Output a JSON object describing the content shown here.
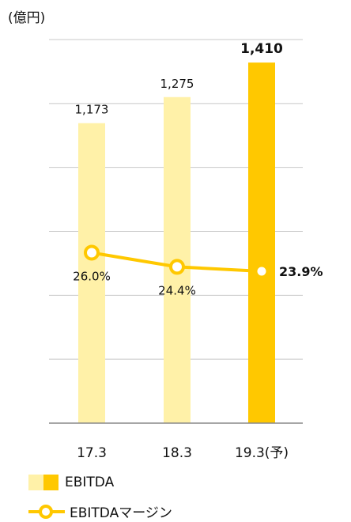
{
  "unit_label": "(億円)",
  "legend": {
    "bar_label": "EBITDA",
    "line_label": "EBITDAマージン"
  },
  "colors": {
    "bar_light": "#fff1a8",
    "bar_accent": "#ffc800",
    "line": "#ffc800",
    "grid": "#c8c8c8",
    "axis": "#888888"
  },
  "chart_data": {
    "type": "bar",
    "categories": [
      "17.3",
      "18.3",
      "19.3(予)"
    ],
    "series": [
      {
        "name": "EBITDA",
        "values": [
          1173,
          1275,
          1410
        ],
        "value_labels": [
          "1,173",
          "1,275",
          "1,410"
        ]
      },
      {
        "name": "EBITDAマージン",
        "type": "line",
        "values": [
          26.0,
          24.4,
          23.9
        ],
        "value_labels": [
          "26.0%",
          "24.4%",
          "23.9%"
        ]
      }
    ],
    "ylabel": "(億円)",
    "ylim": [
      0,
      1500
    ],
    "grid": true,
    "highlight_category": "19.3(予)",
    "legend_position": "bottom-left"
  }
}
